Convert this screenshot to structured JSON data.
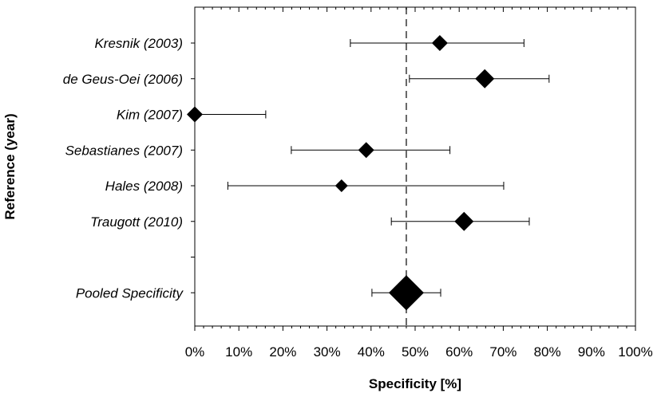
{
  "chart_data": {
    "type": "forest",
    "xlabel": "Specificity [%]",
    "ylabel": "Reference (year)",
    "xlim": [
      0,
      100
    ],
    "x_ticks": [
      "0%",
      "10%",
      "20%",
      "30%",
      "40%",
      "50%",
      "60%",
      "70%",
      "80%",
      "90%",
      "100%"
    ],
    "reference_line": 48,
    "studies": [
      {
        "label": "Kresnik (2003)",
        "estimate": 55.6,
        "ci_low": 35.3,
        "ci_high": 74.7,
        "weight": 2
      },
      {
        "label": "de Geus-Oei (2006)",
        "estimate": 65.8,
        "ci_low": 48.7,
        "ci_high": 80.4,
        "weight": 3
      },
      {
        "label": "Kim (2007)",
        "estimate": 0.0,
        "ci_low": 0.0,
        "ci_high": 16.1,
        "weight": 2
      },
      {
        "label": "Sebastianes (2007)",
        "estimate": 38.9,
        "ci_low": 21.9,
        "ci_high": 57.9,
        "weight": 2
      },
      {
        "label": "Hales (2008)",
        "estimate": 33.3,
        "ci_low": 7.5,
        "ci_high": 70.1,
        "weight": 1
      },
      {
        "label": "Traugott (2010)",
        "estimate": 61.1,
        "ci_low": 44.6,
        "ci_high": 75.9,
        "weight": 3
      }
    ],
    "pooled": {
      "label": "Pooled Specificity",
      "estimate": 48.0,
      "ci_low": 40.2,
      "ci_high": 55.8
    }
  }
}
